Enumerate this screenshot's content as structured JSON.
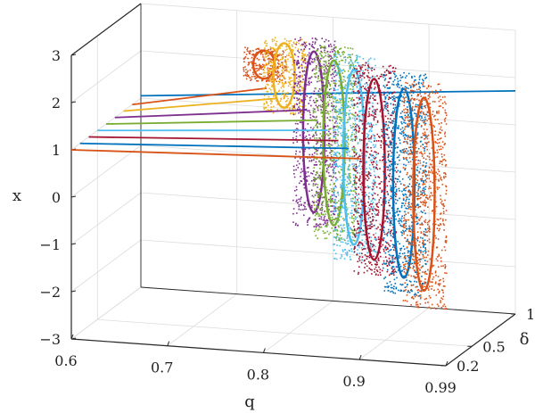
{
  "chart_data": {
    "type": "scatter",
    "view": "3d",
    "grid": true,
    "xlabel": "q",
    "ylabel": "x",
    "zlabel": "δ",
    "xlim": [
      0.6,
      0.99
    ],
    "ylim": [
      -3,
      3
    ],
    "zlim": [
      0.2,
      1
    ],
    "x_ticks": [
      "0.6",
      "0.7",
      "0.8",
      "0.9",
      "0.99"
    ],
    "y_ticks": [
      "−3",
      "−2",
      "−1",
      "0",
      "1",
      "2",
      "3"
    ],
    "z_ticks": [
      "0.2",
      "0.5",
      "1"
    ],
    "slices": [
      {
        "delta": 1.0,
        "color": "#0072BD",
        "stable_x_range": [
          0.6,
          0.99
        ],
        "x_at_q_start": 1.05,
        "x_at_q_end": 1.72
      },
      {
        "delta": 0.9,
        "color": "#D95319",
        "stable_x_range": [
          0.6,
          0.74
        ],
        "x_at_q_start": 1.0,
        "x_at_q_end": 1.55,
        "attractor_q": 0.74,
        "attractor_x_range": [
          1.7,
          2.4
        ]
      },
      {
        "delta": 0.8,
        "color": "#EDB120",
        "stable_x_range": [
          0.6,
          0.76
        ],
        "x_at_q_start": 1.0,
        "x_at_q_end": 1.5,
        "attractor_q": 0.77,
        "attractor_x_range": [
          1.2,
          2.8
        ]
      },
      {
        "delta": 0.7,
        "color": "#7E2F8E",
        "stable_x_range": [
          0.6,
          0.8
        ],
        "x_at_q_start": 1.0,
        "x_at_q_end": 1.45,
        "attractor_q": 0.81,
        "attractor_x_range": [
          -1.0,
          3.0
        ]
      },
      {
        "delta": 0.6,
        "color": "#77AC30",
        "stable_x_range": [
          0.6,
          0.82
        ],
        "x_at_q_start": 1.0,
        "x_at_q_end": 1.4,
        "attractor_q": 0.84,
        "attractor_x_range": [
          -1.1,
          3.0
        ]
      },
      {
        "delta": 0.5,
        "color": "#4DBEEE",
        "stable_x_range": [
          0.6,
          0.84
        ],
        "x_at_q_start": 1.0,
        "x_at_q_end": 1.35,
        "attractor_q": 0.87,
        "attractor_x_range": [
          -1.35,
          3.0
        ]
      },
      {
        "delta": 0.4,
        "color": "#A2142F",
        "stable_x_range": [
          0.6,
          0.86
        ],
        "x_at_q_start": 1.0,
        "x_at_q_end": 1.3,
        "attractor_q": 0.9,
        "attractor_x_range": [
          -1.5,
          3.0
        ]
      },
      {
        "delta": 0.3,
        "color": "#0072BD",
        "stable_x_range": [
          0.6,
          0.88
        ],
        "x_at_q_start": 1.0,
        "x_at_q_end": 1.3,
        "attractor_q": 0.94,
        "attractor_x_range": [
          -1.7,
          3.0
        ]
      },
      {
        "delta": 0.2,
        "color": "#D95319",
        "stable_x_range": [
          0.6,
          0.9
        ],
        "x_at_q_start": 1.0,
        "x_at_q_end": 1.25,
        "attractor_q": 0.97,
        "attractor_x_range": [
          -1.8,
          3.0
        ]
      }
    ]
  }
}
